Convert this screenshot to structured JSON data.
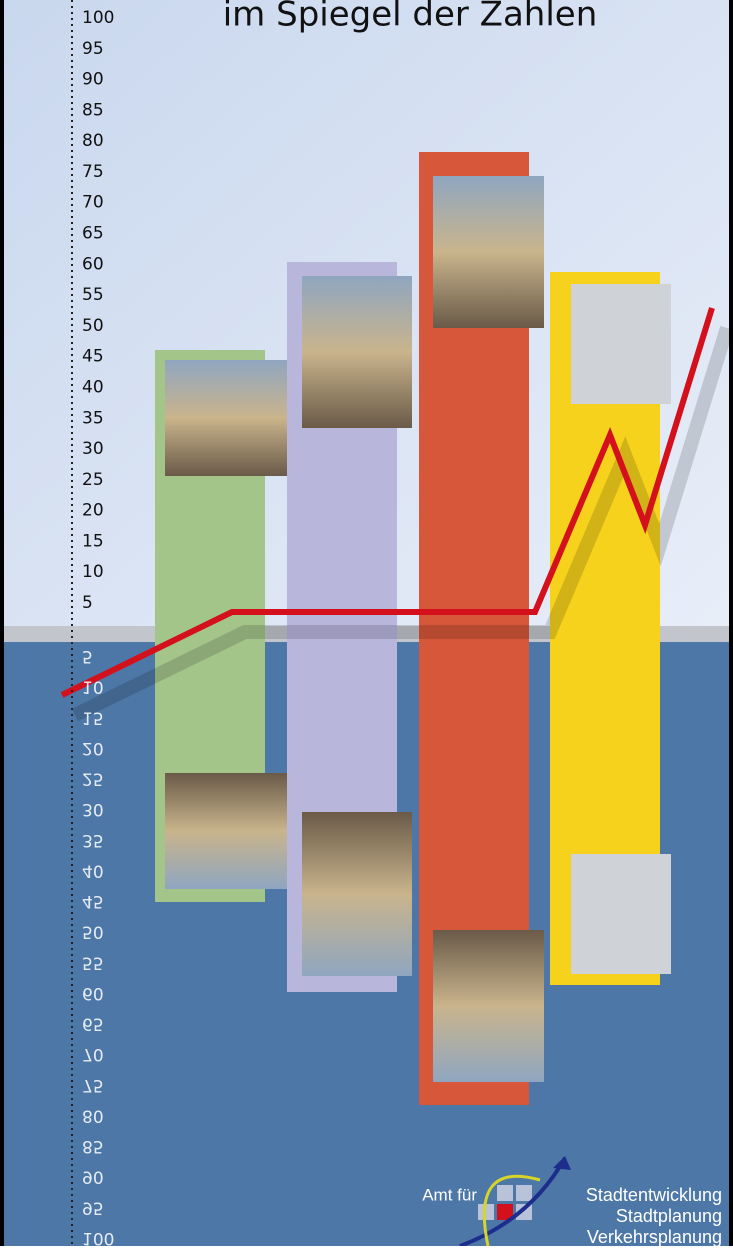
{
  "header": {
    "title": "im Spiegel der Zahlen"
  },
  "scale_upper": [
    "100",
    "95",
    "90",
    "85",
    "80",
    "75",
    "70",
    "65",
    "60",
    "55",
    "50",
    "45",
    "40",
    "35",
    "30",
    "25",
    "20",
    "15",
    "10",
    "5"
  ],
  "scale_lower": [
    "5",
    "10",
    "15",
    "20",
    "25",
    "30",
    "35",
    "40",
    "45",
    "50",
    "55",
    "60",
    "65",
    "70",
    "75",
    "80",
    "85",
    "90",
    "95",
    "100"
  ],
  "footer": {
    "prefix": "Amt für",
    "lines": [
      "Stadtentwicklung",
      "Stadtplanung",
      "Verkehrsplanung"
    ]
  }
}
